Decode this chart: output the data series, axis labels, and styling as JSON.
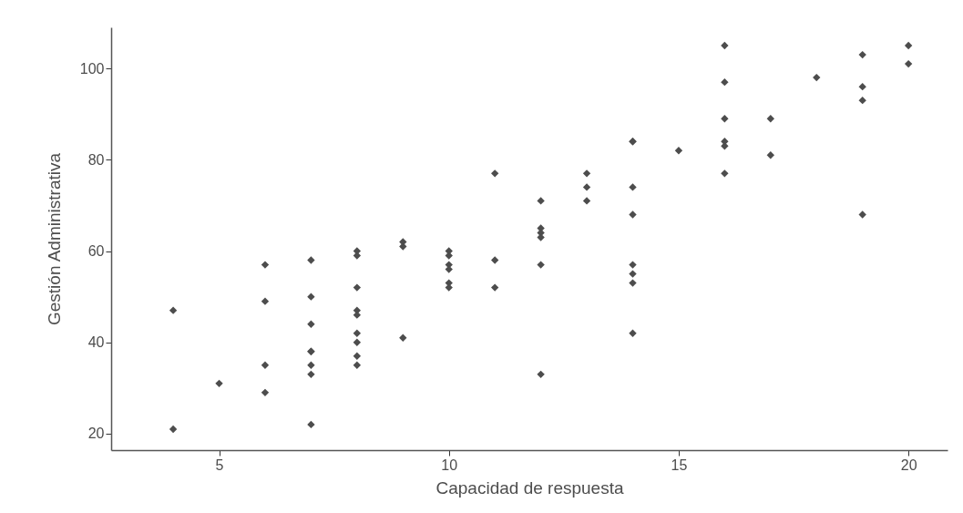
{
  "chart_data": {
    "type": "scatter",
    "xlabel": "Capacidad de respuesta",
    "ylabel": "Gestión Administrativa",
    "xlim": [
      2.65,
      20.85
    ],
    "ylim": [
      16.4,
      109
    ],
    "xticks": [
      5,
      10,
      15,
      20
    ],
    "yticks": [
      20,
      40,
      60,
      80,
      100
    ],
    "grid": false,
    "marker": "diamond",
    "series": [
      {
        "color": "#4d4d4d",
        "x": [
          4,
          4,
          5,
          6,
          6,
          6,
          6,
          7,
          7,
          7,
          7,
          7,
          7,
          7,
          7,
          8,
          8,
          8,
          8,
          8,
          8,
          8,
          8,
          8,
          9,
          9,
          9,
          10,
          10,
          10,
          10,
          10,
          10,
          11,
          11,
          11,
          12,
          12,
          12,
          12,
          12,
          12,
          13,
          13,
          13,
          14,
          14,
          14,
          14,
          14,
          14,
          14,
          14,
          15,
          16,
          16,
          16,
          16,
          16,
          16,
          17,
          17,
          18,
          19,
          19,
          19,
          19,
          20,
          20
        ],
        "values": [
          47,
          21,
          31,
          57,
          49,
          35,
          29,
          58,
          50,
          44,
          38,
          38,
          35,
          33,
          22,
          60,
          59,
          52,
          47,
          46,
          42,
          40,
          37,
          35,
          62,
          61,
          41,
          60,
          59,
          57,
          56,
          53,
          52,
          77,
          58,
          52,
          71,
          65,
          64,
          63,
          57,
          33,
          77,
          74,
          71,
          84,
          84,
          74,
          68,
          57,
          55,
          53,
          42,
          82,
          105,
          97,
          89,
          84,
          83,
          77,
          89,
          81,
          98,
          103,
          96,
          93,
          68,
          105,
          101
        ]
      }
    ]
  }
}
